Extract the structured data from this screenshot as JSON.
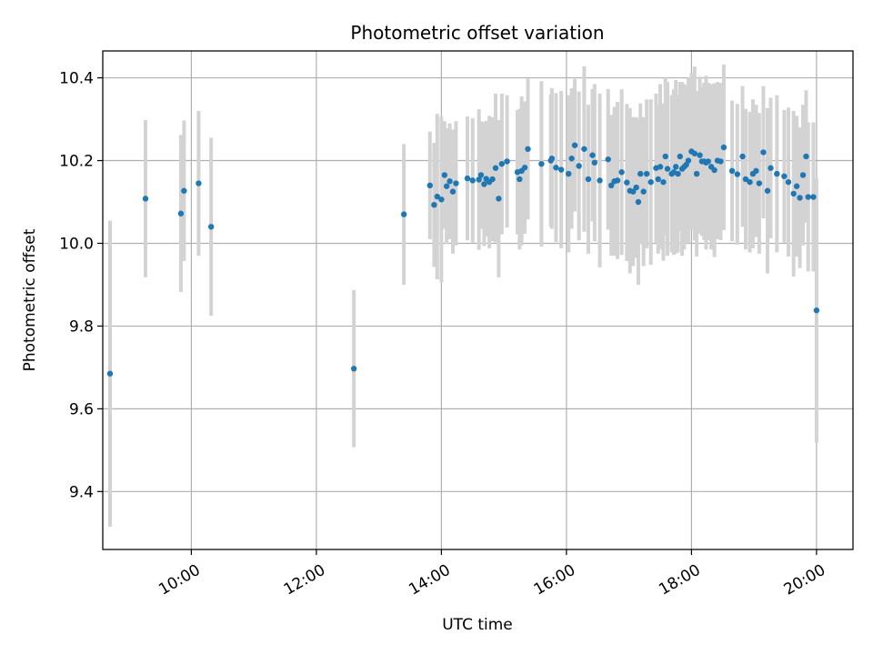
{
  "chart_data": {
    "type": "scatter",
    "title": "Photometric offset variation",
    "xlabel": "UTC time",
    "ylabel": "Photometric offset",
    "x_unit": "UTC time of day",
    "xlim": [
      "08:35",
      "20:35"
    ],
    "ylim": [
      9.26,
      10.465
    ],
    "x_ticks": [
      "10:00",
      "12:00",
      "14:00",
      "16:00",
      "18:00",
      "20:00"
    ],
    "y_ticks": [
      "9.4",
      "9.6",
      "9.8",
      "10.0",
      "10.2",
      "10.4"
    ],
    "grid": true,
    "legend": "none",
    "colors": {
      "marker": "#1f77b4",
      "errorbar": "#d3d3d3",
      "grid": "#b0b0b0"
    },
    "series": [
      {
        "x": [
          "08:42",
          "09:16",
          "09:50",
          "09:53",
          "10:07",
          "10:19",
          "12:36",
          "13:24",
          "13:49",
          "13:53",
          "13:56",
          "14:00",
          "14:03",
          "14:05",
          "14:08",
          "14:11",
          "14:14",
          "14:25",
          "14:30",
          "14:36",
          "14:38",
          "14:41",
          "14:43",
          "14:46",
          "14:49",
          "14:52",
          "14:55",
          "14:58",
          "15:03",
          "15:13",
          "15:15",
          "15:17",
          "15:20",
          "15:23",
          "15:36",
          "15:45",
          "15:46",
          "15:50",
          "15:55",
          "16:02",
          "16:05",
          "16:08",
          "16:12",
          "16:17",
          "16:21",
          "16:25",
          "16:27",
          "16:32",
          "16:40",
          "16:43",
          "16:46",
          "16:49",
          "16:53",
          "16:58",
          "17:01",
          "17:04",
          "17:07",
          "17:09",
          "17:11",
          "17:14",
          "17:17",
          "17:21",
          "17:26",
          "17:28",
          "17:30",
          "17:33",
          "17:35",
          "17:37",
          "17:41",
          "17:43",
          "17:45",
          "17:47",
          "17:49",
          "17:51",
          "17:53",
          "17:55",
          "17:57",
          "18:00",
          "18:03",
          "18:05",
          "18:08",
          "18:10",
          "18:12",
          "18:14",
          "18:16",
          "18:19",
          "18:22",
          "18:25",
          "18:28",
          "18:31",
          "18:39",
          "18:44",
          "18:49",
          "18:52",
          "18:56",
          "18:59",
          "19:02",
          "19:05",
          "19:09",
          "19:13",
          "19:16",
          "19:22",
          "19:29",
          "19:33",
          "19:38",
          "19:41",
          "19:44",
          "19:47",
          "19:50",
          "19:52",
          "19:57",
          "20:00"
        ],
        "y": [
          9.685,
          10.108,
          10.072,
          10.127,
          10.145,
          10.04,
          9.697,
          10.07,
          10.14,
          10.093,
          10.113,
          10.106,
          10.165,
          10.138,
          10.15,
          10.125,
          10.145,
          10.157,
          10.152,
          10.154,
          10.165,
          10.143,
          10.156,
          10.148,
          10.155,
          10.182,
          10.108,
          10.192,
          10.198,
          10.172,
          10.155,
          10.175,
          10.183,
          10.228,
          10.192,
          10.2,
          10.205,
          10.183,
          10.178,
          10.168,
          10.205,
          10.237,
          10.187,
          10.228,
          10.155,
          10.213,
          10.195,
          10.152,
          10.203,
          10.14,
          10.15,
          10.152,
          10.172,
          10.147,
          10.127,
          10.125,
          10.135,
          10.1,
          10.168,
          10.125,
          10.168,
          10.148,
          10.182,
          10.155,
          10.185,
          10.148,
          10.21,
          10.18,
          10.168,
          10.172,
          10.185,
          10.168,
          10.21,
          10.18,
          10.185,
          10.19,
          10.2,
          10.222,
          10.217,
          10.168,
          10.213,
          10.198,
          10.198,
          10.195,
          10.198,
          10.185,
          10.177,
          10.2,
          10.198,
          10.232,
          10.175,
          10.167,
          10.21,
          10.155,
          10.148,
          10.168,
          10.175,
          10.145,
          10.22,
          10.127,
          10.182,
          10.168,
          10.162,
          10.148,
          10.12,
          10.138,
          10.11,
          10.165,
          10.21,
          10.112,
          10.112,
          9.838
        ],
        "err": [
          0.37,
          0.19,
          0.19,
          0.17,
          0.175,
          0.215,
          0.19,
          0.17,
          0.13,
          0.15,
          0.2,
          0.2,
          0.13,
          0.14,
          0.14,
          0.15,
          0.15,
          0.15,
          0.15,
          0.17,
          0.13,
          0.15,
          0.14,
          0.16,
          0.15,
          0.18,
          0.19,
          0.17,
          0.16,
          0.15,
          0.17,
          0.18,
          0.16,
          0.17,
          0.2,
          0.16,
          0.17,
          0.18,
          0.19,
          0.19,
          0.17,
          0.16,
          0.18,
          0.2,
          0.18,
          0.16,
          0.19,
          0.21,
          0.17,
          0.17,
          0.18,
          0.19,
          0.2,
          0.19,
          0.2,
          0.18,
          0.17,
          0.2,
          0.17,
          0.18,
          0.18,
          0.2,
          0.18,
          0.18,
          0.2,
          0.19,
          0.19,
          0.21,
          0.19,
          0.2,
          0.21,
          0.19,
          0.18,
          0.21,
          0.2,
          0.19,
          0.2,
          0.19,
          0.21,
          0.2,
          0.19,
          0.18,
          0.19,
          0.21,
          0.19,
          0.2,
          0.21,
          0.19,
          0.19,
          0.2,
          0.17,
          0.17,
          0.17,
          0.17,
          0.17,
          0.18,
          0.16,
          0.17,
          0.16,
          0.2,
          0.17,
          0.19,
          0.16,
          0.18,
          0.2,
          0.17,
          0.17,
          0.17,
          0.16,
          0.18,
          0.18,
          0.32
        ]
      }
    ]
  }
}
